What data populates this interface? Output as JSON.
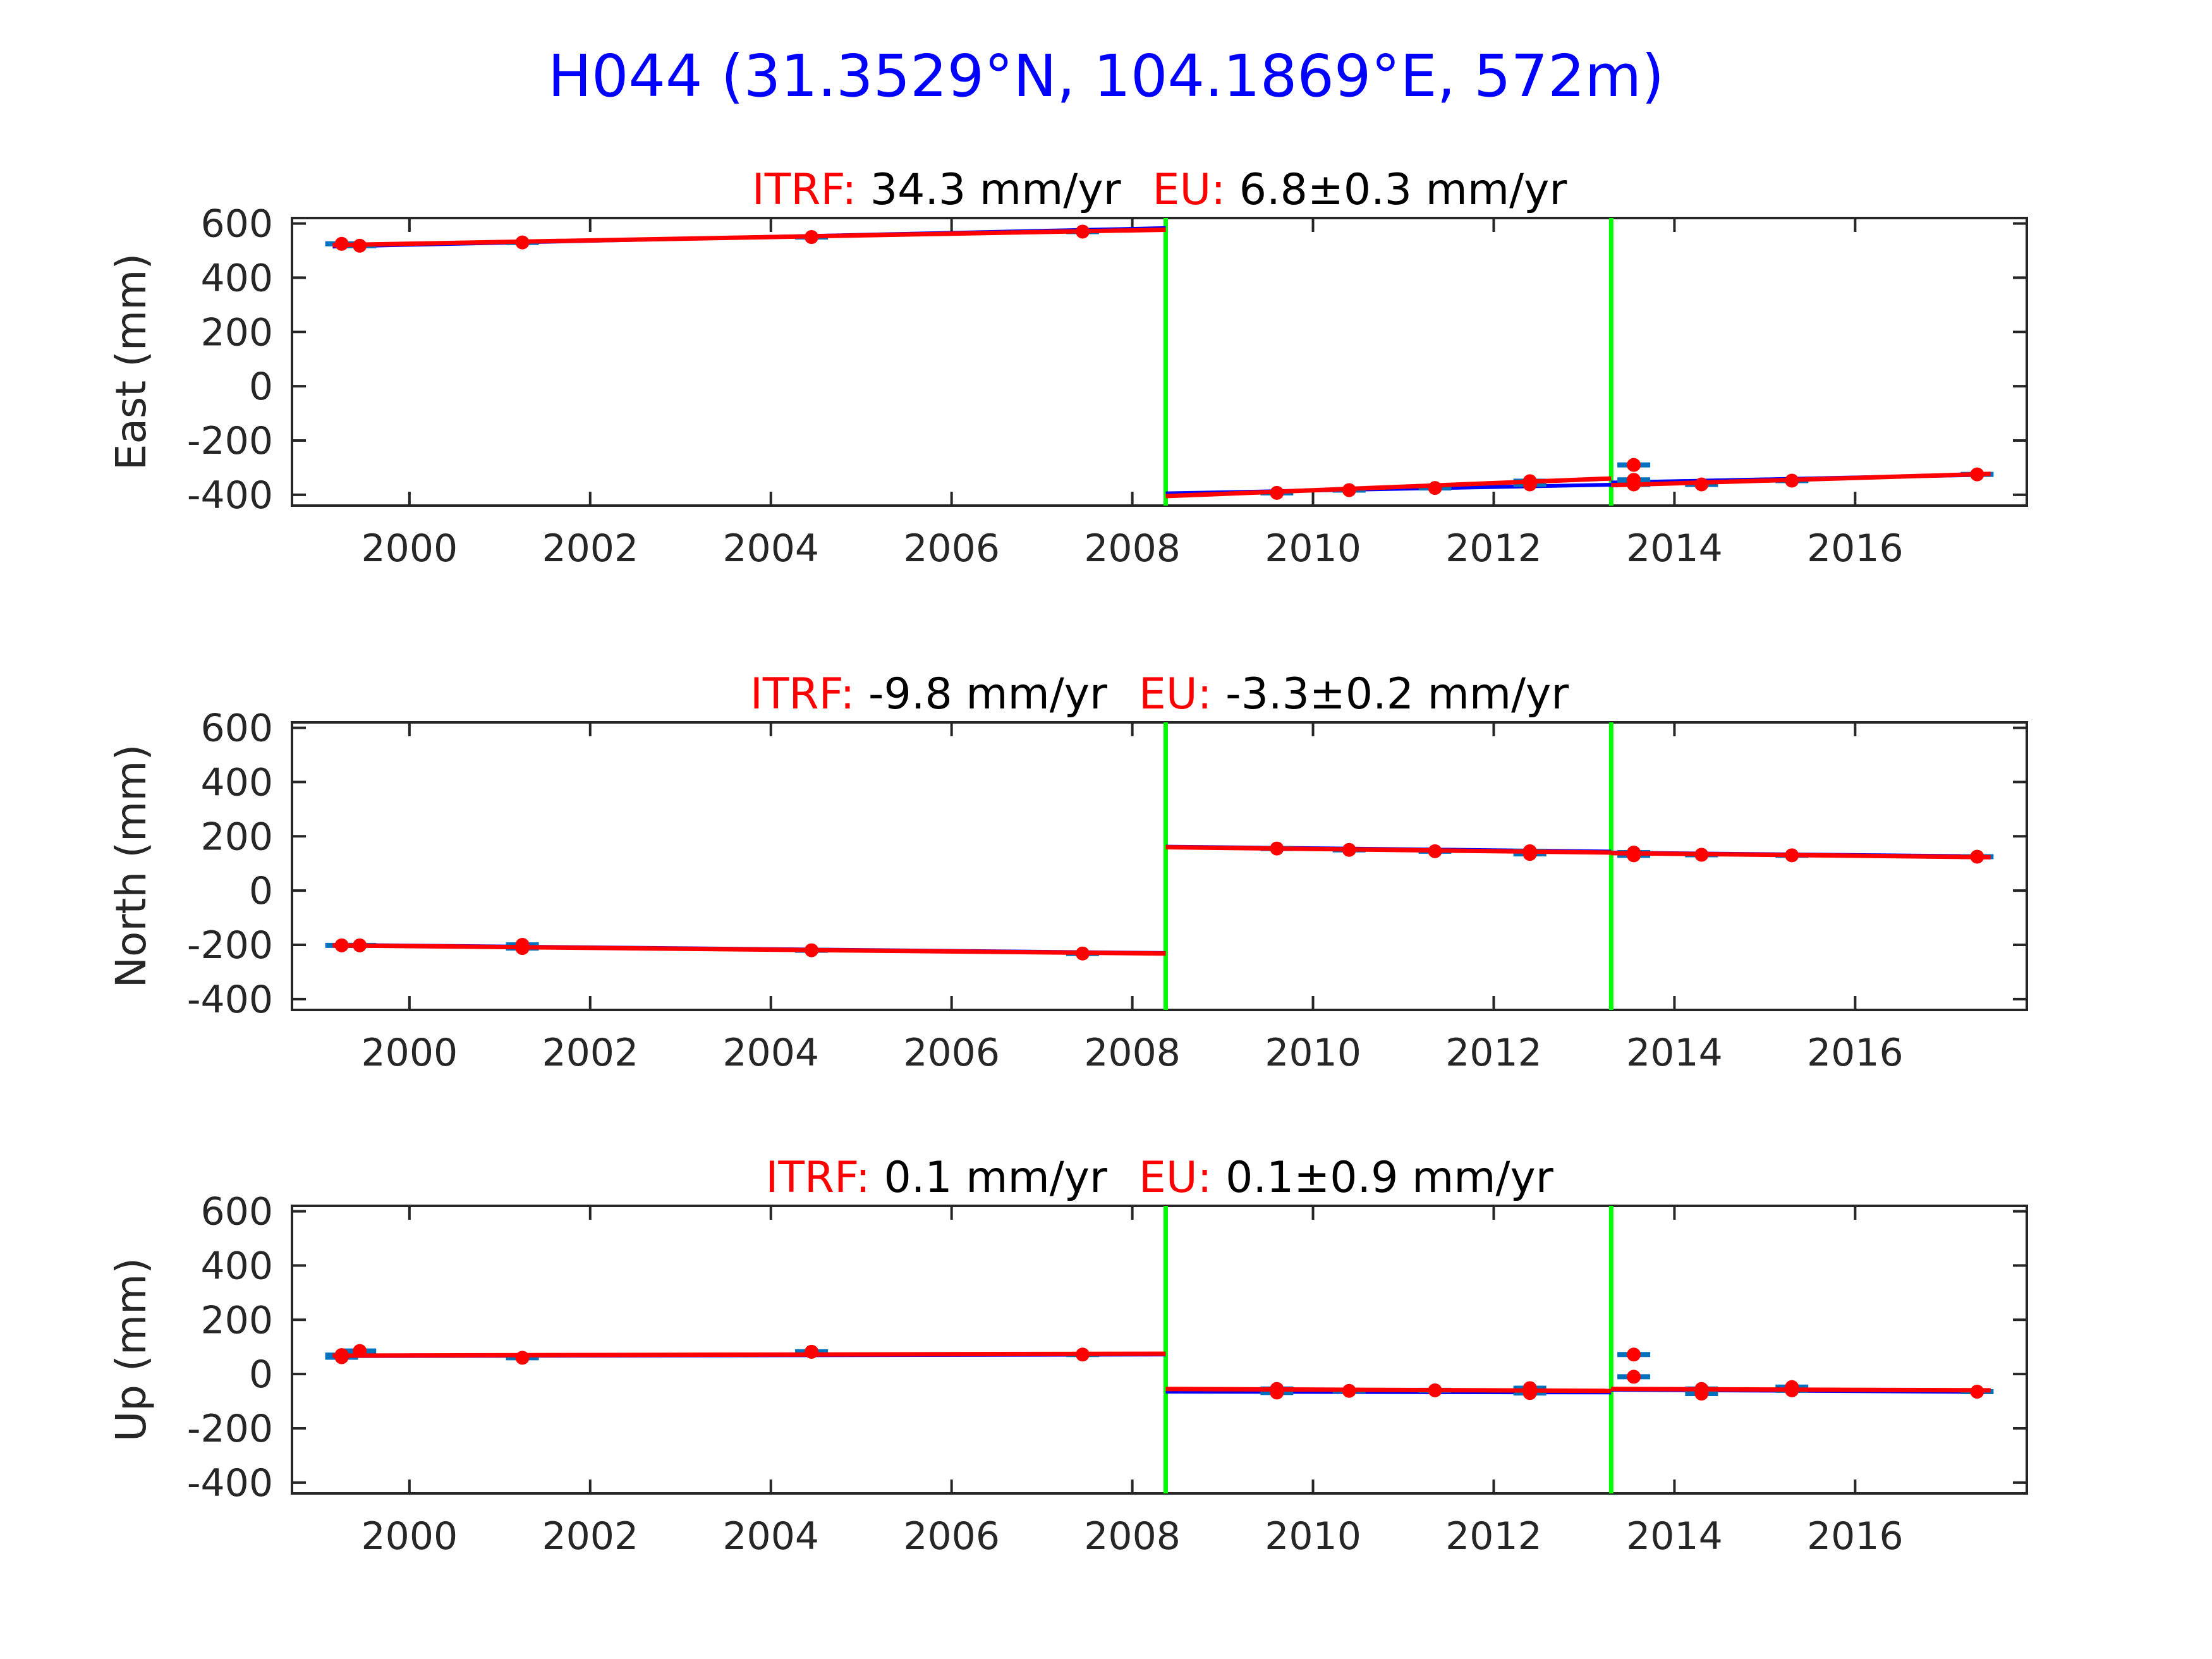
{
  "figure": {
    "title": "H044 (31.3529°N, 104.1869°E, 572m)",
    "title_color": "#0000ff"
  },
  "colors": {
    "data": "#ff0000",
    "model": "#0000ff",
    "errorbar": "#0072bd",
    "event": "#00ff00",
    "label_red": "#ff0000",
    "axis": "#262626"
  },
  "chart_data": [
    {
      "type": "scatter",
      "component": "East",
      "ylabel": "East (mm)",
      "title": {
        "itrf_label": "ITRF:",
        "itrf_value": " 34.3 mm/yr",
        "eu_label": "EU:",
        "eu_value": " 6.8±0.3 mm/yr"
      },
      "xlim": [
        1998.7,
        2017.9
      ],
      "ylim": [
        -440,
        620
      ],
      "xticks": [
        2000,
        2002,
        2004,
        2006,
        2008,
        2010,
        2012,
        2014,
        2016
      ],
      "yticks": [
        -400,
        -200,
        0,
        200,
        400,
        600
      ],
      "events": [
        2008.37,
        2013.3
      ],
      "points": [
        {
          "x": 1999.25,
          "y": 525
        },
        {
          "x": 1999.45,
          "y": 518
        },
        {
          "x": 2001.25,
          "y": 530
        },
        {
          "x": 2004.45,
          "y": 550
        },
        {
          "x": 2007.45,
          "y": 570
        },
        {
          "x": 2009.6,
          "y": -393
        },
        {
          "x": 2010.4,
          "y": -383
        },
        {
          "x": 2011.35,
          "y": -375
        },
        {
          "x": 2012.4,
          "y": -350
        },
        {
          "x": 2012.4,
          "y": -362
        },
        {
          "x": 2013.55,
          "y": -290
        },
        {
          "x": 2013.55,
          "y": -345
        },
        {
          "x": 2013.55,
          "y": -362
        },
        {
          "x": 2014.3,
          "y": -362
        },
        {
          "x": 2015.3,
          "y": -348
        },
        {
          "x": 2017.35,
          "y": -325
        }
      ],
      "fit": [
        {
          "x": [
            1999.15,
            2008.37
          ],
          "y": [
            520,
            577
          ]
        },
        {
          "x": [
            2008.37,
            2013.3
          ],
          "y": [
            -405,
            -340
          ]
        },
        {
          "x": [
            2013.3,
            2017.5
          ],
          "y": [
            -365,
            -323
          ]
        }
      ],
      "model": [
        {
          "x": [
            1999.15,
            2008.37
          ],
          "y": [
            515,
            583
          ]
        },
        {
          "x": [
            2008.37,
            2013.3
          ],
          "y": [
            -395,
            -363
          ]
        },
        {
          "x": [
            2013.3,
            2017.5
          ],
          "y": [
            -355,
            -326
          ]
        }
      ]
    },
    {
      "type": "scatter",
      "component": "North",
      "ylabel": "North (mm)",
      "title": {
        "itrf_label": "ITRF:",
        "itrf_value": " -9.8 mm/yr",
        "eu_label": "EU:",
        "eu_value": " -3.3±0.2 mm/yr"
      },
      "xlim": [
        1998.7,
        2017.9
      ],
      "ylim": [
        -440,
        620
      ],
      "xticks": [
        2000,
        2002,
        2004,
        2006,
        2008,
        2010,
        2012,
        2014,
        2016
      ],
      "yticks": [
        -400,
        -200,
        0,
        200,
        400,
        600
      ],
      "events": [
        2008.37,
        2013.3
      ],
      "points": [
        {
          "x": 1999.25,
          "y": -202
        },
        {
          "x": 1999.45,
          "y": -202
        },
        {
          "x": 2001.25,
          "y": -200
        },
        {
          "x": 2001.25,
          "y": -212
        },
        {
          "x": 2004.45,
          "y": -220
        },
        {
          "x": 2007.45,
          "y": -232
        },
        {
          "x": 2009.6,
          "y": 155
        },
        {
          "x": 2010.4,
          "y": 150
        },
        {
          "x": 2011.35,
          "y": 145
        },
        {
          "x": 2012.4,
          "y": 145
        },
        {
          "x": 2012.4,
          "y": 135
        },
        {
          "x": 2013.55,
          "y": 140
        },
        {
          "x": 2013.55,
          "y": 130
        },
        {
          "x": 2014.3,
          "y": 132
        },
        {
          "x": 2015.3,
          "y": 130
        },
        {
          "x": 2017.35,
          "y": 125
        }
      ],
      "fit": [
        {
          "x": [
            1999.15,
            2008.37
          ],
          "y": [
            -202,
            -232
          ]
        },
        {
          "x": [
            2008.37,
            2013.3
          ],
          "y": [
            160,
            140
          ]
        },
        {
          "x": [
            2013.3,
            2017.5
          ],
          "y": [
            138,
            123
          ]
        }
      ],
      "model": [
        {
          "x": [
            1999.15,
            2008.37
          ],
          "y": [
            -200,
            -230
          ]
        },
        {
          "x": [
            2008.37,
            2013.3
          ],
          "y": [
            162,
            144
          ]
        },
        {
          "x": [
            2013.3,
            2017.5
          ],
          "y": [
            140,
            126
          ]
        }
      ]
    },
    {
      "type": "scatter",
      "component": "Up",
      "ylabel": "Up (mm)",
      "title": {
        "itrf_label": "ITRF:",
        "itrf_value": " 0.1 mm/yr",
        "eu_label": "EU:",
        "eu_value": " 0.1±0.9 mm/yr"
      },
      "xlim": [
        1998.7,
        2017.9
      ],
      "ylim": [
        -440,
        620
      ],
      "xticks": [
        2000,
        2002,
        2004,
        2006,
        2008,
        2010,
        2012,
        2014,
        2016
      ],
      "yticks": [
        -400,
        -200,
        0,
        200,
        400,
        600
      ],
      "events": [
        2008.37,
        2013.3
      ],
      "points": [
        {
          "x": 1999.25,
          "y": 62
        },
        {
          "x": 1999.25,
          "y": 70
        },
        {
          "x": 1999.45,
          "y": 85
        },
        {
          "x": 2001.25,
          "y": 60
        },
        {
          "x": 2004.45,
          "y": 82
        },
        {
          "x": 2007.45,
          "y": 72
        },
        {
          "x": 2009.6,
          "y": -55
        },
        {
          "x": 2009.6,
          "y": -68
        },
        {
          "x": 2010.4,
          "y": -62
        },
        {
          "x": 2011.35,
          "y": -60
        },
        {
          "x": 2012.4,
          "y": -52
        },
        {
          "x": 2012.4,
          "y": -70
        },
        {
          "x": 2013.55,
          "y": 72
        },
        {
          "x": 2013.55,
          "y": -10
        },
        {
          "x": 2014.3,
          "y": -55
        },
        {
          "x": 2014.3,
          "y": -72
        },
        {
          "x": 2015.3,
          "y": -48
        },
        {
          "x": 2015.3,
          "y": -60
        },
        {
          "x": 2017.35,
          "y": -65
        }
      ],
      "fit": [
        {
          "x": [
            1999.15,
            2008.37
          ],
          "y": [
            68,
            75
          ]
        },
        {
          "x": [
            2008.37,
            2013.3
          ],
          "y": [
            -55,
            -62
          ]
        },
        {
          "x": [
            2013.3,
            2017.5
          ],
          "y": [
            -55,
            -60
          ]
        }
      ],
      "model": [
        {
          "x": [
            1999.15,
            2008.37
          ],
          "y": [
            66,
            72
          ]
        },
        {
          "x": [
            2008.37,
            2013.3
          ],
          "y": [
            -65,
            -68
          ]
        },
        {
          "x": [
            2013.3,
            2017.5
          ],
          "y": [
            -58,
            -66
          ]
        }
      ]
    }
  ]
}
